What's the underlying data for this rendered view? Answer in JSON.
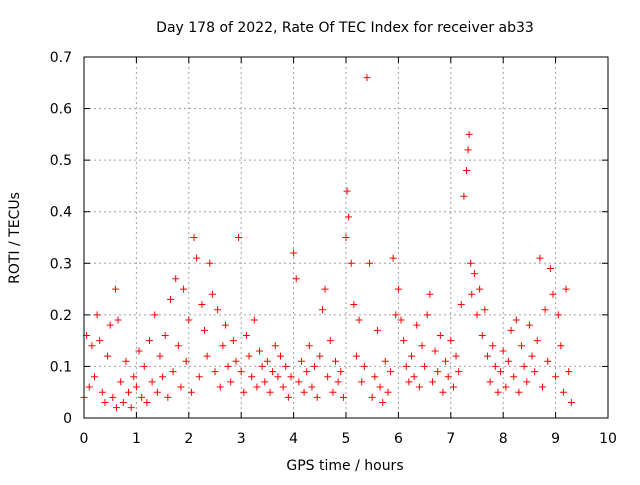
{
  "chart_data": {
    "type": "scatter",
    "title": "Day 178 of 2022, Rate Of TEC Index for receiver ab33",
    "xlabel": "GPS time / hours",
    "ylabel": "ROTI / TECUs",
    "xlim": [
      0,
      10
    ],
    "ylim": [
      0,
      0.7
    ],
    "xticks": [
      0,
      1,
      2,
      3,
      4,
      5,
      6,
      7,
      8,
      9,
      10
    ],
    "yticks": [
      0,
      0.1,
      0.2,
      0.3,
      0.4,
      0.5,
      0.6,
      0.7
    ],
    "xtick_labels": [
      "0",
      "1",
      "2",
      "3",
      "4",
      "5",
      "6",
      "7",
      "8",
      "9",
      "10"
    ],
    "ytick_labels": [
      "0",
      "0.1",
      "0.2",
      "0.3",
      "0.4",
      "0.5",
      "0.6",
      "0.7"
    ],
    "grid": true,
    "marker": "+",
    "marker_color": "#ff0000",
    "series": [
      {
        "name": "ab33",
        "x": [
          0.0,
          0.05,
          0.1,
          0.15,
          0.2,
          0.25,
          0.3,
          0.35,
          0.4,
          0.45,
          0.5,
          0.55,
          0.6,
          0.62,
          0.65,
          0.7,
          0.75,
          0.8,
          0.85,
          0.9,
          0.95,
          1.0,
          1.05,
          1.1,
          1.15,
          1.2,
          1.25,
          1.3,
          1.35,
          1.4,
          1.45,
          1.5,
          1.55,
          1.6,
          1.65,
          1.7,
          1.75,
          1.8,
          1.85,
          1.9,
          1.95,
          2.0,
          2.05,
          2.1,
          2.15,
          2.2,
          2.25,
          2.3,
          2.35,
          2.4,
          2.45,
          2.5,
          2.55,
          2.6,
          2.65,
          2.7,
          2.75,
          2.8,
          2.85,
          2.9,
          2.95,
          3.0,
          3.05,
          3.1,
          3.15,
          3.2,
          3.25,
          3.3,
          3.35,
          3.4,
          3.45,
          3.5,
          3.55,
          3.6,
          3.65,
          3.7,
          3.75,
          3.8,
          3.85,
          3.9,
          3.95,
          4.0,
          4.05,
          4.1,
          4.15,
          4.2,
          4.25,
          4.3,
          4.35,
          4.4,
          4.45,
          4.5,
          4.55,
          4.6,
          4.65,
          4.7,
          4.75,
          4.8,
          4.85,
          4.9,
          4.95,
          5.0,
          5.02,
          5.05,
          5.1,
          5.15,
          5.2,
          5.25,
          5.3,
          5.35,
          5.4,
          5.45,
          5.5,
          5.55,
          5.6,
          5.65,
          5.7,
          5.75,
          5.8,
          5.85,
          5.9,
          5.95,
          6.0,
          6.05,
          6.1,
          6.15,
          6.2,
          6.25,
          6.3,
          6.35,
          6.4,
          6.45,
          6.5,
          6.55,
          6.6,
          6.65,
          6.7,
          6.75,
          6.8,
          6.85,
          6.9,
          6.95,
          7.0,
          7.05,
          7.1,
          7.15,
          7.2,
          7.25,
          7.3,
          7.33,
          7.35,
          7.38,
          7.4,
          7.45,
          7.5,
          7.55,
          7.6,
          7.65,
          7.7,
          7.75,
          7.8,
          7.85,
          7.9,
          7.95,
          8.0,
          8.05,
          8.1,
          8.15,
          8.2,
          8.25,
          8.3,
          8.35,
          8.4,
          8.45,
          8.5,
          8.55,
          8.6,
          8.65,
          8.7,
          8.75,
          8.8,
          8.85,
          8.9,
          8.95,
          9.0,
          9.05,
          9.1,
          9.15,
          9.2,
          9.25,
          9.3
        ],
        "y": [
          0.04,
          0.16,
          0.06,
          0.14,
          0.08,
          0.2,
          0.15,
          0.05,
          0.03,
          0.12,
          0.18,
          0.04,
          0.25,
          0.02,
          0.19,
          0.07,
          0.03,
          0.11,
          0.05,
          0.02,
          0.08,
          0.06,
          0.13,
          0.04,
          0.1,
          0.03,
          0.15,
          0.07,
          0.2,
          0.05,
          0.12,
          0.08,
          0.16,
          0.04,
          0.23,
          0.09,
          0.27,
          0.14,
          0.06,
          0.25,
          0.11,
          0.19,
          0.05,
          0.35,
          0.31,
          0.08,
          0.22,
          0.17,
          0.12,
          0.3,
          0.24,
          0.09,
          0.21,
          0.06,
          0.14,
          0.18,
          0.1,
          0.07,
          0.15,
          0.11,
          0.35,
          0.09,
          0.05,
          0.16,
          0.12,
          0.08,
          0.19,
          0.06,
          0.13,
          0.1,
          0.07,
          0.11,
          0.05,
          0.09,
          0.14,
          0.08,
          0.12,
          0.06,
          0.1,
          0.04,
          0.08,
          0.32,
          0.27,
          0.07,
          0.11,
          0.05,
          0.09,
          0.14,
          0.06,
          0.1,
          0.04,
          0.12,
          0.21,
          0.25,
          0.08,
          0.15,
          0.05,
          0.11,
          0.07,
          0.09,
          0.04,
          0.35,
          0.44,
          0.39,
          0.3,
          0.22,
          0.12,
          0.19,
          0.07,
          0.1,
          0.66,
          0.3,
          0.04,
          0.08,
          0.17,
          0.06,
          0.03,
          0.11,
          0.05,
          0.09,
          0.31,
          0.2,
          0.25,
          0.19,
          0.15,
          0.1,
          0.07,
          0.12,
          0.08,
          0.18,
          0.06,
          0.14,
          0.1,
          0.2,
          0.24,
          0.07,
          0.13,
          0.09,
          0.16,
          0.05,
          0.11,
          0.08,
          0.15,
          0.06,
          0.12,
          0.09,
          0.22,
          0.43,
          0.48,
          0.52,
          0.55,
          0.3,
          0.24,
          0.28,
          0.2,
          0.25,
          0.16,
          0.21,
          0.12,
          0.07,
          0.14,
          0.1,
          0.05,
          0.09,
          0.13,
          0.06,
          0.11,
          0.17,
          0.08,
          0.19,
          0.05,
          0.14,
          0.1,
          0.07,
          0.18,
          0.12,
          0.09,
          0.15,
          0.31,
          0.06,
          0.21,
          0.11,
          0.29,
          0.24,
          0.08,
          0.2,
          0.14,
          0.05,
          0.25,
          0.09,
          0.03
        ]
      }
    ]
  }
}
